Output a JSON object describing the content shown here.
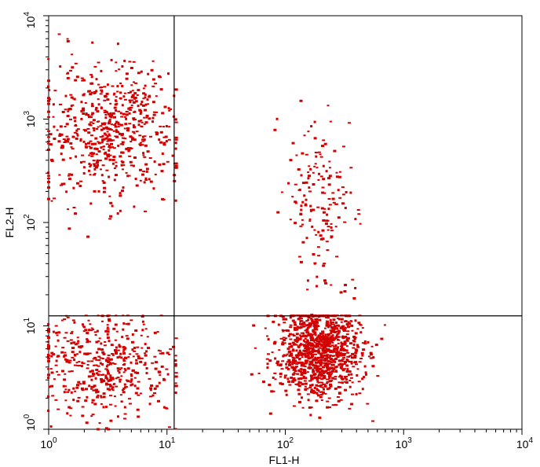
{
  "chart_data": {
    "type": "scatter",
    "title": "",
    "xlabel": "FL1-H",
    "ylabel": "FL2-H",
    "xscale": "log",
    "yscale": "log",
    "xlim": [
      1,
      10000
    ],
    "ylim": [
      1,
      10000
    ],
    "x_ticks": [
      {
        "base": "10",
        "exp": "0"
      },
      {
        "base": "10",
        "exp": "1"
      },
      {
        "base": "10",
        "exp": "2"
      },
      {
        "base": "10",
        "exp": "3"
      },
      {
        "base": "10",
        "exp": "4"
      }
    ],
    "y_ticks": [
      {
        "base": "10",
        "exp": "0"
      },
      {
        "base": "10",
        "exp": "1"
      },
      {
        "base": "10",
        "exp": "2"
      },
      {
        "base": "10",
        "exp": "3"
      },
      {
        "base": "10",
        "exp": "4"
      }
    ],
    "grid": false,
    "point_color": "#d40000",
    "quadrant_gates": {
      "x": 11.5,
      "y": 12.5
    },
    "clusters": [
      {
        "name": "",
        "n": 620,
        "x_center": 3.2,
        "x_spread_decades": 0.28,
        "y_center": 800,
        "y_spread_decades": 0.32,
        "x_min": 1,
        "x_max": 12,
        "y_min": 12.5,
        "y_max": 9000
      },
      {
        "name": "",
        "n": 480,
        "x_center": 3.0,
        "x_spread_decades": 0.3,
        "y_center": 4.2,
        "y_spread_decades": 0.25,
        "x_min": 1,
        "x_max": 12,
        "y_min": 1,
        "y_max": 12.5
      },
      {
        "name": "",
        "n": 1100,
        "x_center": 190,
        "x_spread_decades": 0.18,
        "y_center": 5.5,
        "y_spread_decades": 0.22,
        "x_min": 25,
        "x_max": 700,
        "y_min": 1,
        "y_max": 12.5
      },
      {
        "name": "",
        "n": 170,
        "x_center": 200,
        "x_spread_decades": 0.15,
        "y_center": 150,
        "y_spread_decades": 0.45,
        "x_min": 60,
        "x_max": 600,
        "y_min": 12.5,
        "y_max": 1500
      }
    ]
  }
}
